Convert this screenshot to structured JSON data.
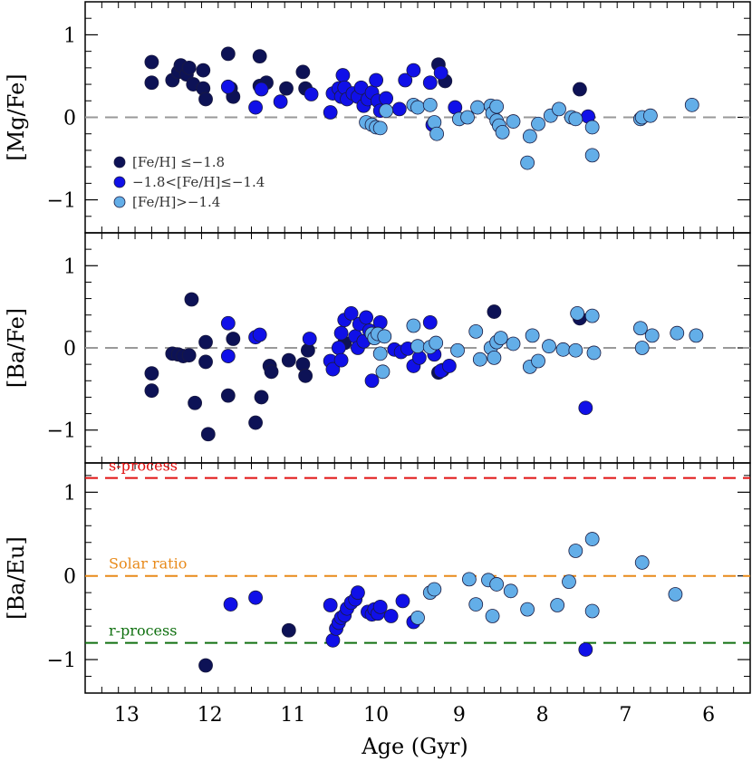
{
  "chart_data": [
    {
      "type": "scatter",
      "ylabel": "[Mg/Fe]",
      "ylim": [
        -1.4,
        1.4
      ],
      "yticks": [
        -1,
        0,
        1
      ],
      "hline": {
        "value": 0,
        "color": "#999999",
        "style": "dashed"
      },
      "legend_position": "lower-left",
      "series": [
        {
          "name": "[Fe/H] ≤−1.8",
          "color": "#0d1256",
          "points": [
            [
              12.7,
              0.67
            ],
            [
              12.7,
              0.42
            ],
            [
              12.45,
              0.45
            ],
            [
              12.38,
              0.55
            ],
            [
              12.35,
              0.63
            ],
            [
              12.28,
              0.52
            ],
            [
              12.25,
              0.6
            ],
            [
              12.2,
              0.4
            ],
            [
              12.08,
              0.57
            ],
            [
              12.08,
              0.35
            ],
            [
              12.05,
              0.22
            ],
            [
              11.78,
              0.77
            ],
            [
              11.75,
              0.35
            ],
            [
              11.72,
              0.25
            ],
            [
              11.4,
              0.74
            ],
            [
              11.4,
              0.38
            ],
            [
              11.32,
              0.42
            ],
            [
              11.08,
              0.35
            ],
            [
              10.88,
              0.55
            ],
            [
              10.85,
              0.35
            ],
            [
              9.25,
              0.64
            ],
            [
              9.17,
              0.44
            ],
            [
              7.55,
              0.34
            ]
          ]
        },
        {
          "name": "−1.8<[Fe/H]≤−1.4",
          "color": "#1010e8",
          "points": [
            [
              11.78,
              0.37
            ],
            [
              11.45,
              0.12
            ],
            [
              11.38,
              0.34
            ],
            [
              11.15,
              0.19
            ],
            [
              10.78,
              0.28
            ],
            [
              10.55,
              0.06
            ],
            [
              10.52,
              0.29
            ],
            [
              10.45,
              0.35
            ],
            [
              10.42,
              0.25
            ],
            [
              10.4,
              0.51
            ],
            [
              10.38,
              0.36
            ],
            [
              10.35,
              0.22
            ],
            [
              10.28,
              0.29
            ],
            [
              10.22,
              0.25
            ],
            [
              10.18,
              0.36
            ],
            [
              10.15,
              0.14
            ],
            [
              10.1,
              0.22
            ],
            [
              10.05,
              0.3
            ],
            [
              10.0,
              0.45
            ],
            [
              9.98,
              0.2
            ],
            [
              9.95,
              0.08
            ],
            [
              9.88,
              0.23
            ],
            [
              9.72,
              0.1
            ],
            [
              9.65,
              0.45
            ],
            [
              9.55,
              0.57
            ],
            [
              9.35,
              0.42
            ],
            [
              9.32,
              -0.09
            ],
            [
              9.22,
              0.54
            ],
            [
              9.05,
              0.12
            ],
            [
              7.45,
              0.01
            ]
          ]
        },
        {
          "name": "[Fe/H]>−1.4",
          "color": "#63aee8",
          "points": [
            [
              10.12,
              -0.06
            ],
            [
              10.05,
              -0.09
            ],
            [
              10.0,
              -0.12
            ],
            [
              9.95,
              -0.13
            ],
            [
              9.88,
              0.08
            ],
            [
              9.55,
              0.15
            ],
            [
              9.5,
              0.12
            ],
            [
              9.35,
              0.15
            ],
            [
              9.3,
              -0.06
            ],
            [
              9.27,
              -0.2
            ],
            [
              9.0,
              -0.02
            ],
            [
              8.9,
              0.0
            ],
            [
              8.78,
              0.12
            ],
            [
              8.62,
              0.14
            ],
            [
              8.6,
              0.05
            ],
            [
              8.55,
              0.13
            ],
            [
              8.55,
              -0.04
            ],
            [
              8.52,
              -0.1
            ],
            [
              8.48,
              -0.18
            ],
            [
              8.35,
              -0.05
            ],
            [
              8.18,
              -0.55
            ],
            [
              8.15,
              -0.23
            ],
            [
              8.05,
              -0.08
            ],
            [
              7.9,
              0.02
            ],
            [
              7.8,
              0.1
            ],
            [
              7.65,
              0.0
            ],
            [
              7.6,
              -0.02
            ],
            [
              7.4,
              -0.46
            ],
            [
              7.4,
              -0.12
            ],
            [
              6.82,
              -0.02
            ],
            [
              6.8,
              0.0
            ],
            [
              6.7,
              0.02
            ],
            [
              6.2,
              0.15
            ]
          ]
        }
      ],
      "legend": [
        {
          "label": "[Fe/H] ≤−1.8",
          "color": "#0d1256"
        },
        {
          "label": "−1.8<[Fe/H]≤−1.4",
          "color": "#1010e8"
        },
        {
          "label": "[Fe/H]>−1.4",
          "color": "#63aee8"
        }
      ]
    },
    {
      "type": "scatter",
      "ylabel": "[Ba/Fe]",
      "ylim": [
        -1.4,
        1.4
      ],
      "yticks": [
        -1,
        0,
        1
      ],
      "hline": {
        "value": 0,
        "color": "#999999",
        "style": "dashed"
      },
      "series": [
        {
          "name": "[Fe/H] ≤−1.8",
          "color": "#0d1256",
          "points": [
            [
              12.7,
              -0.31
            ],
            [
              12.7,
              -0.52
            ],
            [
              12.45,
              -0.07
            ],
            [
              12.38,
              -0.08
            ],
            [
              12.32,
              -0.1
            ],
            [
              12.25,
              -0.09
            ],
            [
              12.22,
              0.59
            ],
            [
              12.18,
              -0.67
            ],
            [
              12.05,
              0.07
            ],
            [
              12.05,
              -0.17
            ],
            [
              12.02,
              -1.05
            ],
            [
              11.78,
              -0.58
            ],
            [
              11.72,
              0.11
            ],
            [
              11.45,
              -0.91
            ],
            [
              11.38,
              -0.6
            ],
            [
              11.28,
              -0.22
            ],
            [
              11.26,
              -0.29
            ],
            [
              11.05,
              -0.15
            ],
            [
              10.88,
              -0.2
            ],
            [
              10.85,
              -0.34
            ],
            [
              10.82,
              -0.03
            ],
            [
              10.38,
              0.06
            ],
            [
              9.25,
              -0.3
            ],
            [
              9.2,
              -0.27
            ],
            [
              8.58,
              0.44
            ],
            [
              7.55,
              0.36
            ]
          ]
        },
        {
          "name": "−1.8<[Fe/H]≤−1.4",
          "color": "#1010e8",
          "points": [
            [
              11.78,
              0.3
            ],
            [
              11.78,
              -0.1
            ],
            [
              11.45,
              0.13
            ],
            [
              11.4,
              0.16
            ],
            [
              10.8,
              0.11
            ],
            [
              10.55,
              -0.16
            ],
            [
              10.52,
              -0.26
            ],
            [
              10.45,
              0.0
            ],
            [
              10.42,
              -0.15
            ],
            [
              10.42,
              0.18
            ],
            [
              10.38,
              0.34
            ],
            [
              10.3,
              0.42
            ],
            [
              10.25,
              0.14
            ],
            [
              10.22,
              0.0
            ],
            [
              10.2,
              0.29
            ],
            [
              10.15,
              0.08
            ],
            [
              10.12,
              0.37
            ],
            [
              10.08,
              0.21
            ],
            [
              10.05,
              -0.4
            ],
            [
              9.95,
              0.31
            ],
            [
              9.78,
              -0.02
            ],
            [
              9.7,
              -0.05
            ],
            [
              9.62,
              -0.01
            ],
            [
              9.55,
              -0.22
            ],
            [
              9.48,
              -0.12
            ],
            [
              9.35,
              0.31
            ],
            [
              9.3,
              -0.08
            ],
            [
              9.22,
              -0.28
            ],
            [
              9.12,
              -0.22
            ],
            [
              7.48,
              -0.73
            ]
          ]
        },
        {
          "name": "[Fe/H]>−1.4",
          "color": "#63aee8",
          "points": [
            [
              10.05,
              0.17
            ],
            [
              10.02,
              0.12
            ],
            [
              9.98,
              0.17
            ],
            [
              9.95,
              -0.07
            ],
            [
              9.92,
              -0.29
            ],
            [
              9.9,
              0.14
            ],
            [
              9.55,
              0.27
            ],
            [
              9.5,
              0.02
            ],
            [
              9.35,
              0.01
            ],
            [
              9.28,
              0.06
            ],
            [
              9.02,
              -0.03
            ],
            [
              8.8,
              0.2
            ],
            [
              8.75,
              -0.14
            ],
            [
              8.62,
              0.0
            ],
            [
              8.58,
              -0.12
            ],
            [
              8.55,
              0.07
            ],
            [
              8.5,
              0.12
            ],
            [
              8.35,
              0.05
            ],
            [
              8.15,
              -0.23
            ],
            [
              8.12,
              0.15
            ],
            [
              8.05,
              -0.16
            ],
            [
              7.92,
              0.02
            ],
            [
              7.75,
              -0.02
            ],
            [
              7.6,
              -0.03
            ],
            [
              7.58,
              0.42
            ],
            [
              7.4,
              0.39
            ],
            [
              7.38,
              -0.06
            ],
            [
              6.82,
              0.24
            ],
            [
              6.8,
              0.0
            ],
            [
              6.68,
              0.15
            ],
            [
              6.38,
              0.18
            ],
            [
              6.15,
              0.15
            ]
          ]
        }
      ]
    },
    {
      "type": "scatter",
      "ylabel": "[Ba/Eu]",
      "xlabel": "Age (Gyr)",
      "ylim": [
        -1.4,
        1.35
      ],
      "yticks": [
        -1,
        0,
        1
      ],
      "xlim": [
        13.5,
        5.5
      ],
      "xticks": [
        13,
        12,
        11,
        10,
        9,
        8,
        7,
        6
      ],
      "reference_lines": [
        {
          "label": "s-process",
          "value": 1.17,
          "color": "#e01010"
        },
        {
          "label": "Solar ratio",
          "value": 0.0,
          "color": "#e88a1a"
        },
        {
          "label": "r-process",
          "value": -0.8,
          "color": "#107010"
        }
      ],
      "series": [
        {
          "name": "[Fe/H] ≤−1.8",
          "color": "#0d1256",
          "points": [
            [
              12.05,
              -1.07
            ],
            [
              11.05,
              -0.65
            ]
          ]
        },
        {
          "name": "−1.8<[Fe/H]≤−1.4",
          "color": "#1010e8",
          "points": [
            [
              11.75,
              -0.34
            ],
            [
              11.45,
              -0.26
            ],
            [
              10.55,
              -0.35
            ],
            [
              10.52,
              -0.77
            ],
            [
              10.48,
              -0.63
            ],
            [
              10.45,
              -0.56
            ],
            [
              10.42,
              -0.5
            ],
            [
              10.38,
              -0.47
            ],
            [
              10.35,
              -0.39
            ],
            [
              10.3,
              -0.32
            ],
            [
              10.25,
              -0.28
            ],
            [
              10.22,
              -0.2
            ],
            [
              10.1,
              -0.43
            ],
            [
              10.05,
              -0.46
            ],
            [
              10.02,
              -0.4
            ],
            [
              9.98,
              -0.45
            ],
            [
              9.95,
              -0.37
            ],
            [
              9.82,
              -0.48
            ],
            [
              9.68,
              -0.3
            ],
            [
              9.55,
              -0.55
            ],
            [
              7.48,
              -0.88
            ]
          ]
        },
        {
          "name": "[Fe/H]>−1.4",
          "color": "#63aee8",
          "points": [
            [
              9.5,
              -0.5
            ],
            [
              9.35,
              -0.2
            ],
            [
              9.3,
              -0.16
            ],
            [
              8.88,
              -0.04
            ],
            [
              8.8,
              -0.34
            ],
            [
              8.65,
              -0.05
            ],
            [
              8.6,
              -0.48
            ],
            [
              8.55,
              -0.1
            ],
            [
              8.38,
              -0.18
            ],
            [
              8.18,
              -0.4
            ],
            [
              7.82,
              -0.35
            ],
            [
              7.68,
              -0.07
            ],
            [
              7.6,
              0.3
            ],
            [
              7.4,
              0.44
            ],
            [
              7.4,
              -0.42
            ],
            [
              6.8,
              0.16
            ],
            [
              6.4,
              -0.22
            ]
          ]
        }
      ]
    }
  ]
}
